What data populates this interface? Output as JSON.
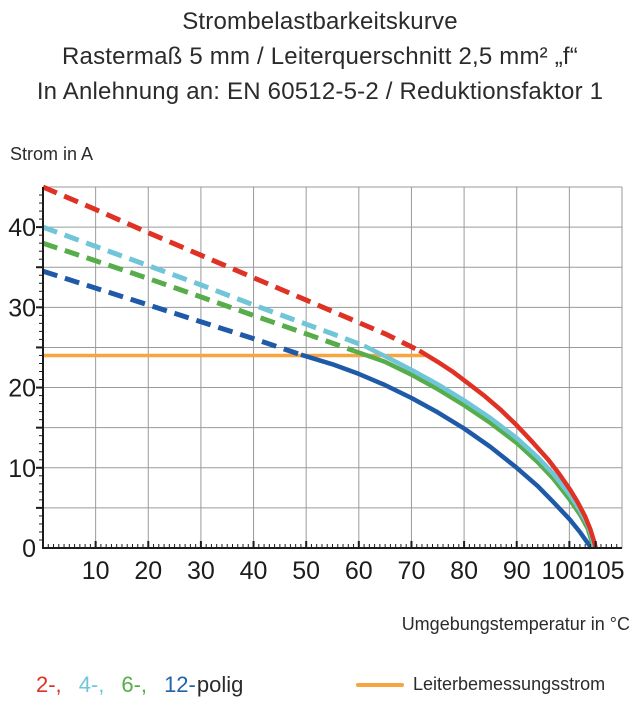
{
  "title": {
    "line1": "Strombelastbarkeitskurve",
    "line2": "Rastermaß 5 mm / Leiterquerschnitt 2,5 mm² „f“",
    "line3": "In Anlehnung an: EN 60512-5-2 / Reduktionsfaktor 1"
  },
  "legend": {
    "poles": [
      {
        "label": "2-,",
        "color": "#e03224"
      },
      {
        "label": "4-,",
        "color": "#70c6d8"
      },
      {
        "label": "6-,",
        "color": "#56ad4a"
      },
      {
        "label": "12-",
        "color": "#2263ae"
      }
    ],
    "suffix": "polig",
    "rated": {
      "label": "Leiterbemessungsstrom",
      "color": "#f6a53f"
    }
  },
  "chart_data": {
    "type": "line",
    "title": "Strombelastbarkeitskurve",
    "xlabel": "Umgebungstemperatur in °C",
    "ylabel": "Strom in A",
    "xlim": [
      0,
      110
    ],
    "ylim": [
      0,
      45
    ],
    "x_major_ticks": [
      10,
      20,
      30,
      40,
      50,
      60,
      70,
      80,
      90,
      100,
      105
    ],
    "y_major_ticks": [
      0,
      10,
      20,
      30,
      40
    ],
    "grid": {
      "x_step": 10,
      "y_step": 5,
      "color": "#9a9a9a",
      "on": true
    },
    "axis_color": "#1c1c1c",
    "legend_position": "bottom",
    "series": [
      {
        "name": "Leiterbemessungsstrom",
        "color": "#f6a53f",
        "style": "thin-solid",
        "solid": [
          [
            0,
            24
          ],
          [
            72.5,
            24
          ]
        ]
      },
      {
        "name": "12-polig",
        "color": "#1f5aa8",
        "dashed": [
          [
            0,
            34.5
          ],
          [
            10,
            32.4
          ],
          [
            20,
            30.3
          ],
          [
            30,
            28.2
          ],
          [
            40,
            26.1
          ],
          [
            49,
            24.1
          ]
        ],
        "solid": [
          [
            49,
            24.1
          ],
          [
            55,
            22.9
          ],
          [
            60,
            21.7
          ],
          [
            65,
            20.3
          ],
          [
            70,
            18.7
          ],
          [
            75,
            16.9
          ],
          [
            80,
            14.9
          ],
          [
            85,
            12.6
          ],
          [
            90,
            10.0
          ],
          [
            94,
            7.7
          ],
          [
            97,
            5.7
          ],
          [
            100,
            3.6
          ],
          [
            102,
            2.0
          ],
          [
            103.5,
            0.6
          ],
          [
            104.2,
            0
          ]
        ]
      },
      {
        "name": "6-polig",
        "color": "#56ad4a",
        "dashed": [
          [
            0,
            38
          ],
          [
            10,
            35.8
          ],
          [
            20,
            33.6
          ],
          [
            30,
            31.3
          ],
          [
            40,
            29.0
          ],
          [
            50,
            26.7
          ],
          [
            59,
            24.6
          ]
        ],
        "solid": [
          [
            59,
            24.6
          ],
          [
            65,
            23.2
          ],
          [
            70,
            21.6
          ],
          [
            75,
            19.8
          ],
          [
            80,
            17.8
          ],
          [
            85,
            15.6
          ],
          [
            90,
            13.1
          ],
          [
            94,
            10.7
          ],
          [
            97,
            8.6
          ],
          [
            100,
            6.1
          ],
          [
            102,
            4.2
          ],
          [
            103.5,
            2.4
          ],
          [
            104.4,
            0.5
          ],
          [
            104.5,
            0
          ]
        ]
      },
      {
        "name": "4-polig",
        "color": "#70c6d8",
        "dashed": [
          [
            0,
            40
          ],
          [
            10,
            37.6
          ],
          [
            20,
            35.2
          ],
          [
            30,
            32.8
          ],
          [
            40,
            30.3
          ],
          [
            50,
            27.9
          ],
          [
            55,
            26.7
          ],
          [
            61,
            25.2
          ]
        ],
        "solid": [
          [
            61,
            25.2
          ],
          [
            65,
            23.9
          ],
          [
            70,
            22.2
          ],
          [
            75,
            20.4
          ],
          [
            80,
            18.4
          ],
          [
            85,
            16.2
          ],
          [
            90,
            13.7
          ],
          [
            94,
            11.3
          ],
          [
            97,
            9.2
          ],
          [
            100,
            6.7
          ],
          [
            102,
            4.7
          ],
          [
            103.5,
            2.9
          ],
          [
            104.5,
            0.9
          ],
          [
            104.7,
            0
          ]
        ]
      },
      {
        "name": "2-polig",
        "color": "#e03224",
        "dashed": [
          [
            0,
            45
          ],
          [
            10,
            42.2
          ],
          [
            20,
            39.3
          ],
          [
            30,
            36.5
          ],
          [
            40,
            33.7
          ],
          [
            50,
            30.9
          ],
          [
            60,
            28.1
          ],
          [
            65,
            26.7
          ],
          [
            71.5,
            24.6
          ]
        ],
        "solid": [
          [
            71.5,
            24.6
          ],
          [
            75,
            23.2
          ],
          [
            78,
            21.9
          ],
          [
            81,
            20.4
          ],
          [
            84,
            18.9
          ],
          [
            87,
            17.2
          ],
          [
            90,
            15.3
          ],
          [
            93,
            13.2
          ],
          [
            96,
            11.0
          ],
          [
            98,
            9.3
          ],
          [
            100,
            7.4
          ],
          [
            101.5,
            5.8
          ],
          [
            103,
            3.9
          ],
          [
            104,
            2.3
          ],
          [
            104.8,
            0.6
          ],
          [
            105,
            0
          ]
        ]
      }
    ]
  }
}
